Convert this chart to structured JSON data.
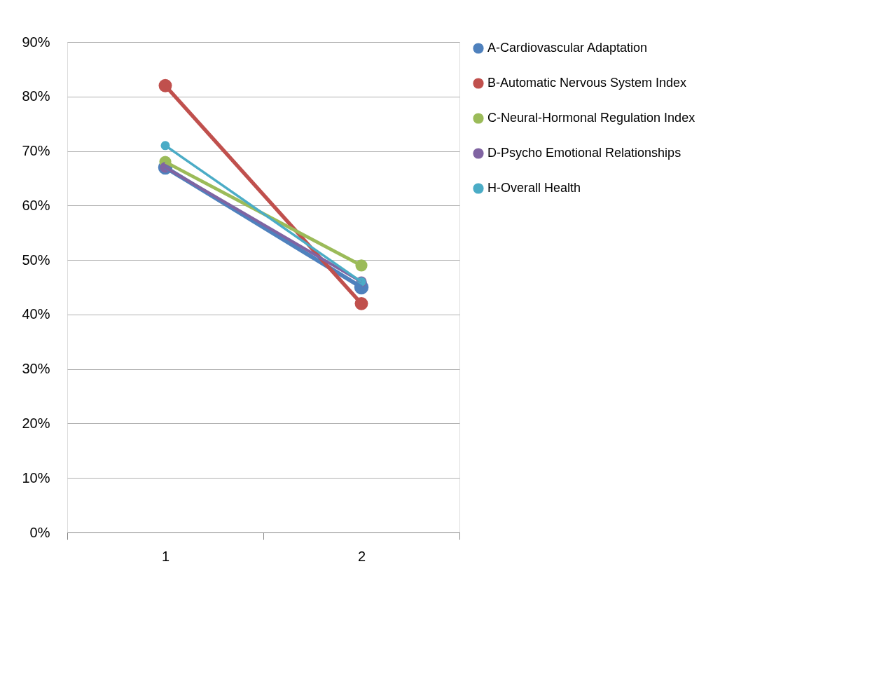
{
  "chart_data": {
    "type": "line",
    "categories": [
      "1",
      "2"
    ],
    "series": [
      {
        "name": "A-Cardiovascular Adaptation",
        "color": "#4f81bd",
        "values": [
          0.67,
          0.45
        ]
      },
      {
        "name": "B-Automatic Nervous System Index",
        "color": "#c0504d",
        "values": [
          0.82,
          0.42
        ]
      },
      {
        "name": "C-Neural-Hormonal Regulation Index",
        "color": "#9bbb59",
        "values": [
          0.68,
          0.49
        ]
      },
      {
        "name": "D-Psycho Emotional Relationships",
        "color": "#8064a2",
        "values": [
          0.67,
          0.46
        ]
      },
      {
        "name": "H-Overall Health",
        "color": "#4bacc6",
        "values": [
          0.71,
          0.46
        ]
      }
    ],
    "ylim": [
      0,
      0.9
    ],
    "yticks": [
      {
        "value": 0,
        "label": "0%"
      },
      {
        "value": 0.1,
        "label": "10%"
      },
      {
        "value": 0.2,
        "label": "20%"
      },
      {
        "value": 0.3,
        "label": "30%"
      },
      {
        "value": 0.4,
        "label": "40%"
      },
      {
        "value": 0.5,
        "label": "50%"
      },
      {
        "value": 0.6,
        "label": "60%"
      },
      {
        "value": 0.7,
        "label": "70%"
      },
      {
        "value": 0.8,
        "label": "80%"
      },
      {
        "value": 0.9,
        "label": "90%"
      }
    ],
    "grid": "y",
    "legend": "right",
    "marker": "circle",
    "line_style": "solid"
  }
}
